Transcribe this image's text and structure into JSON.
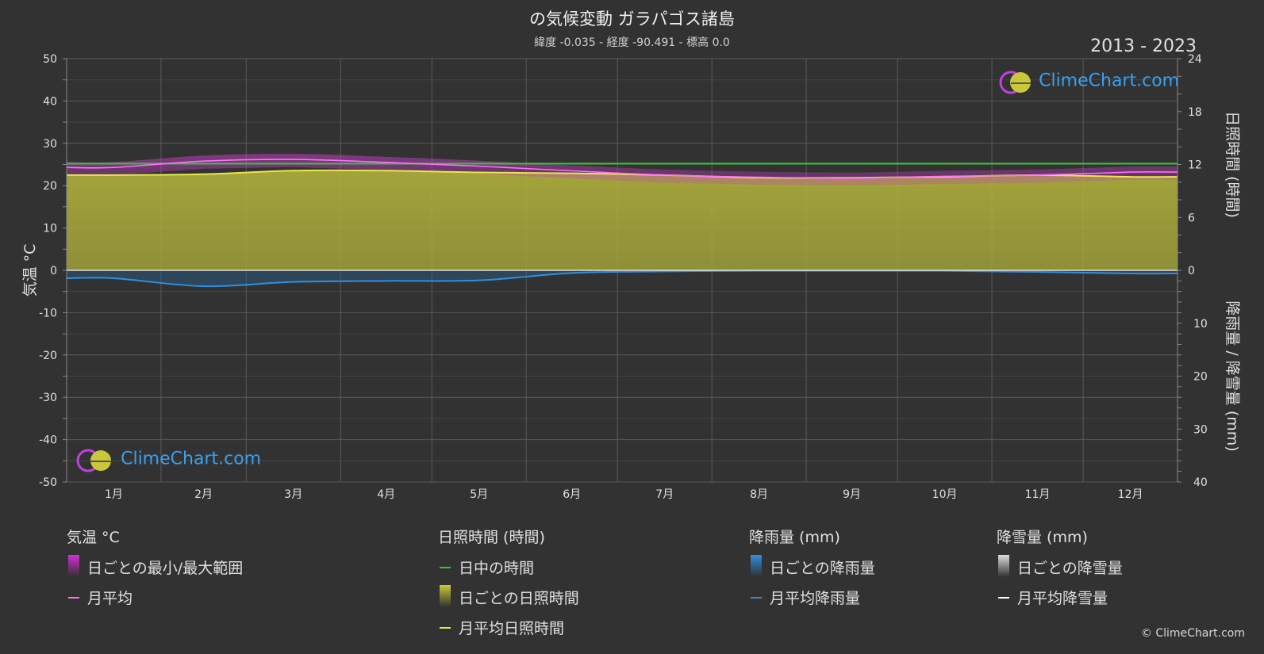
{
  "header": {
    "title": "の気候変動 ガラパゴス諸島",
    "subtitle": "緯度 -0.035 - 経度 -90.491 - 標高 0.0",
    "years": "2013 - 2023"
  },
  "brand": {
    "logo_text": "ClimeChart.com",
    "copyright": "© ClimeChart.com",
    "accent": "#3aa0ee"
  },
  "chart_data": {
    "type": "area",
    "categories": [
      "1月",
      "2月",
      "3月",
      "4月",
      "5月",
      "6月",
      "7月",
      "8月",
      "9月",
      "10月",
      "11月",
      "12月"
    ],
    "axes": {
      "left": {
        "label": "気温 °C",
        "ticks": [
          "50",
          "40",
          "30",
          "20",
          "10",
          "0",
          "-10",
          "-20",
          "-30",
          "-40",
          "-50"
        ],
        "range": [
          -50,
          50
        ]
      },
      "right_top": {
        "label": "日照時間 (時間)",
        "ticks": [
          "24",
          "18",
          "12",
          "6",
          "0"
        ],
        "range": [
          0,
          24
        ]
      },
      "right_bottom": {
        "label": "降雨量 / 降雪量 (mm)",
        "ticks": [
          "10",
          "20",
          "30",
          "40"
        ],
        "range": [
          0,
          40
        ]
      }
    },
    "grid": true,
    "series": [
      {
        "name": "日中の時間",
        "unit": "hours",
        "color": "#34c534",
        "values": [
          12.1,
          12.1,
          12.1,
          12.1,
          12.1,
          12.1,
          12.1,
          12.1,
          12.1,
          12.1,
          12.1,
          12.1
        ]
      },
      {
        "name": "月平均日照時間",
        "unit": "hours",
        "color": "#e8e84a",
        "values": [
          10.8,
          10.9,
          11.3,
          11.3,
          11.1,
          11.0,
          10.8,
          10.5,
          10.5,
          10.6,
          10.8,
          10.6
        ]
      },
      {
        "name": "月平均",
        "unit": "°C",
        "color": "#ff70ff",
        "values": [
          24.3,
          25.8,
          26.2,
          25.5,
          24.6,
          23.5,
          22.5,
          22.0,
          21.8,
          22.2,
          22.5,
          23.2
        ]
      },
      {
        "name": "月平均降雨量",
        "unit": "mm",
        "color": "#2f8fde",
        "values": [
          1.5,
          3.0,
          2.2,
          2.0,
          1.9,
          0.5,
          0.2,
          0.1,
          0.1,
          0.1,
          0.3,
          0.6
        ]
      },
      {
        "name": "月平均降雪量",
        "unit": "mm",
        "color": "#ffffff",
        "values": [
          0,
          0,
          0,
          0,
          0,
          0,
          0,
          0,
          0,
          0,
          0,
          0
        ]
      }
    ]
  },
  "legend": {
    "groups": [
      {
        "title": "気温 °C",
        "items": [
          {
            "label": "日ごとの最小/最大範囲",
            "kind": "box",
            "color": "#d42fd4"
          },
          {
            "label": "月平均",
            "kind": "line",
            "color": "#ff70ff"
          }
        ]
      },
      {
        "title": "日照時間 (時間)",
        "items": [
          {
            "label": "日中の時間",
            "kind": "line",
            "color": "#34c534"
          },
          {
            "label": "日ごとの日照時間",
            "kind": "box",
            "color": "#c9c93a"
          },
          {
            "label": "月平均日照時間",
            "kind": "line",
            "color": "#e8e84a"
          }
        ]
      },
      {
        "title": "降雨量 (mm)",
        "items": [
          {
            "label": "日ごとの降雨量",
            "kind": "box",
            "color": "#2f8fde"
          },
          {
            "label": "月平均降雨量",
            "kind": "line",
            "color": "#2f8fde"
          }
        ]
      },
      {
        "title": "降雪量 (mm)",
        "items": [
          {
            "label": "日ごとの降雪量",
            "kind": "box",
            "color": "#dddddd"
          },
          {
            "label": "月平均降雪量",
            "kind": "line",
            "color": "#ffffff"
          }
        ]
      }
    ]
  }
}
